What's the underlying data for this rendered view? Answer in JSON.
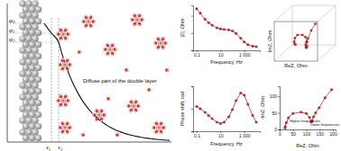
{
  "diagram": {
    "potential_labels": [
      "φ0",
      "ψ1",
      "ψ2"
    ],
    "distance_labels": [
      "x1",
      "x2"
    ],
    "region_label": "Diffuse part of the double layer"
  },
  "chart_data": [
    {
      "type": "line",
      "xlabel": "Frequency, Hz",
      "ylabel": "|Z|, Ohm",
      "log": "x",
      "x": [
        0.1,
        0.2,
        0.5,
        1,
        2,
        5,
        10,
        20,
        50,
        100,
        200,
        500,
        1000,
        2000,
        5000,
        10000
      ],
      "series": [
        {
          "values": [
            240,
            215,
            180,
            160,
            145,
            130,
            124,
            121,
            118,
            112,
            98,
            70,
            48,
            32,
            24,
            21
          ],
          "color": "#c62828",
          "marker": "circle",
          "line_style": "solid"
        }
      ],
      "xlim": [
        0.05,
        20000
      ],
      "ylim": [
        0,
        260
      ],
      "xticks": [
        0.1,
        10,
        {
          "value": 1000,
          "label": "1 000"
        }
      ],
      "yticks": [
        0,
        100,
        200
      ],
      "tick_labels": "x",
      "grid": false
    },
    {
      "type": "scatter3d",
      "xlabel": "ReZ, Ohm",
      "ylabel": "ImZ, Ohm",
      "x": [
        195,
        170,
        148,
        135,
        127,
        122,
        120,
        118,
        112,
        100,
        80,
        50,
        33,
        25,
        21,
        20
      ],
      "z": [
        0.1,
        0.2,
        0.5,
        1,
        2,
        5,
        10,
        20,
        50,
        100,
        200,
        500,
        1000,
        2000,
        5000,
        10000
      ],
      "series": [
        {
          "values": [
            120,
            95,
            65,
            50,
            38,
            26,
            22,
            24,
            36,
            48,
            52,
            48,
            35,
            20,
            9,
            4
          ],
          "color": "#c62828",
          "marker": "circle",
          "line_style": "solid"
        }
      ],
      "xlim": [
        0,
        210
      ],
      "ylim": [
        0,
        130
      ],
      "zlim": [
        0.05,
        20000
      ],
      "tick_labels": false,
      "grid": false
    },
    {
      "type": "line",
      "xlabel": "Frequency, Hz",
      "ylabel": "Phase shift, rad",
      "log": "x",
      "x": [
        0.1,
        0.2,
        0.5,
        1,
        2,
        5,
        10,
        20,
        50,
        100,
        200,
        500,
        1000,
        2000,
        5000,
        10000
      ],
      "series": [
        {
          "values": [
            0.55,
            0.5,
            0.42,
            0.35,
            0.28,
            0.2,
            0.17,
            0.2,
            0.32,
            0.48,
            0.68,
            0.85,
            0.8,
            0.6,
            0.35,
            0.2
          ],
          "color": "#c62828",
          "marker": "circle",
          "line_style": "solid"
        }
      ],
      "xlim": [
        0.05,
        20000
      ],
      "ylim": [
        0,
        1
      ],
      "xticks": [
        0.1,
        10,
        {
          "value": 1000,
          "label": "1 000"
        }
      ],
      "yticks": [
        0,
        0.5,
        1
      ],
      "tick_labels": "x",
      "grid": false
    },
    {
      "type": "line",
      "xlabel": "ReZ, Ohm",
      "ylabel": "-ImZ, Ohm",
      "x": [
        195,
        170,
        148,
        135,
        127,
        122,
        120,
        118,
        112,
        100,
        80,
        50,
        33,
        25,
        21,
        20
      ],
      "series": [
        {
          "values": [
            120,
            95,
            65,
            50,
            38,
            26,
            22,
            24,
            36,
            48,
            52,
            48,
            35,
            20,
            9,
            4
          ],
          "color": "#c62828",
          "marker": "circle",
          "line_style": "solid"
        }
      ],
      "xlim": [
        0,
        210
      ],
      "ylim": [
        0,
        130
      ],
      "xticks": [
        0,
        50,
        100,
        150,
        200
      ],
      "yticks": [
        0,
        50,
        100
      ],
      "annotations": [
        "Higher frequencies",
        "Lower frequencies"
      ],
      "grid": false
    }
  ]
}
